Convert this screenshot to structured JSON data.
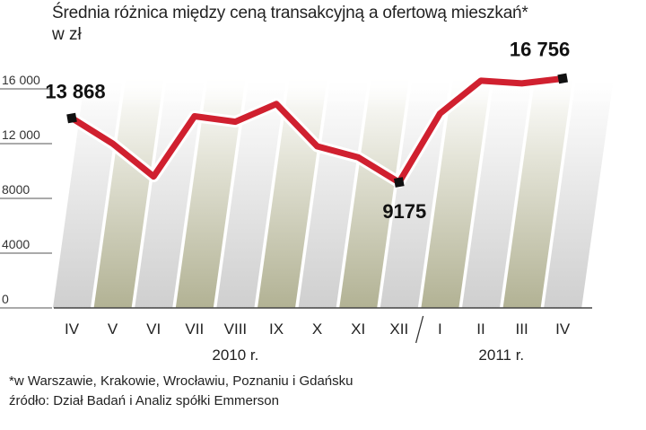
{
  "title": "Średnia różnica między ceną transakcyjną a ofertową mieszkań*",
  "subtitle": "w zł",
  "footnote": "*w Warszawie, Krakowie, Wrocławiu, Poznaniu i Gdańsku",
  "source": "źródło: Dział Badań i Analiz spółki Emmerson",
  "colors": {
    "line": "#d0202f",
    "band": "#b8b89a",
    "axis": "#444444"
  },
  "chart_data": {
    "type": "line",
    "categories": [
      "IV",
      "V",
      "VI",
      "VII",
      "VIII",
      "IX",
      "X",
      "XI",
      "XII",
      "I",
      "II",
      "III",
      "IV"
    ],
    "year_labels": [
      {
        "label": "2010 r.",
        "from": 0,
        "to": 8
      },
      {
        "label": "2011 r.",
        "from": 9,
        "to": 12
      }
    ],
    "series": [
      {
        "values": [
          13868,
          12000,
          9600,
          14000,
          13600,
          14900,
          11800,
          11000,
          9175,
          14200,
          16600,
          16400,
          16756
        ]
      }
    ],
    "annotations": [
      {
        "index": 0,
        "text": "13 868"
      },
      {
        "index": 8,
        "text": "9175"
      },
      {
        "index": 12,
        "text": "16 756"
      }
    ],
    "ylim": [
      0,
      16000
    ],
    "yticks": [
      0,
      4000,
      8000,
      12000,
      16000
    ],
    "ytick_labels": [
      "0",
      "4000",
      "8000",
      "12 000",
      "16 000"
    ],
    "grid": false
  }
}
